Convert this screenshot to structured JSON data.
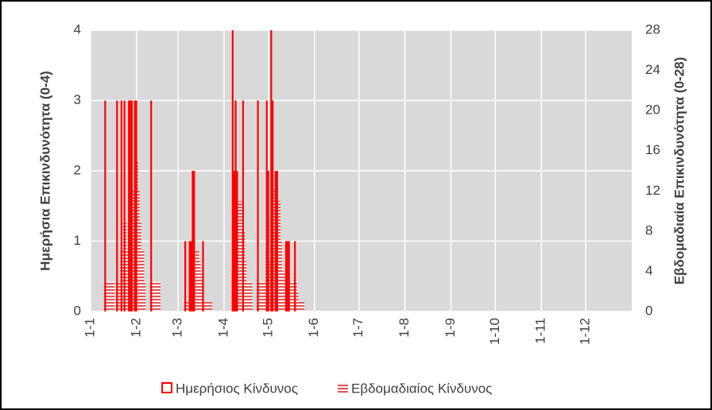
{
  "chart_data": {
    "type": "bar",
    "y_label": "Ημερήσια Επικινδυνότητα (0-4)",
    "y2_label": "Εβδομαδιαία Επικινδυνότητα (0-28)",
    "xlim": [
      0,
      365
    ],
    "xticks": [
      {
        "value": 0,
        "label": "1-1"
      },
      {
        "value": 31,
        "label": "1-2"
      },
      {
        "value": 59,
        "label": "1-3"
      },
      {
        "value": 90,
        "label": "1-4"
      },
      {
        "value": 120,
        "label": "1-5"
      },
      {
        "value": 151,
        "label": "1-6"
      },
      {
        "value": 181,
        "label": "1-7"
      },
      {
        "value": 212,
        "label": "1-8"
      },
      {
        "value": 243,
        "label": "1-9"
      },
      {
        "value": 273,
        "label": "1-10"
      },
      {
        "value": 304,
        "label": "1-11"
      },
      {
        "value": 334,
        "label": "1-12"
      }
    ],
    "ylim": [
      0,
      4
    ],
    "yticks": [
      0,
      1,
      2,
      3,
      4
    ],
    "y2lim": [
      0,
      28
    ],
    "y2ticks": [
      0,
      4,
      8,
      12,
      16,
      20,
      24,
      28
    ],
    "grid": true,
    "legend": "bottom",
    "x": [
      9,
      10,
      11,
      12,
      13,
      14,
      15,
      17,
      18,
      19,
      20,
      21,
      22,
      23,
      24,
      25,
      26,
      27,
      28,
      29,
      30,
      31,
      32,
      33,
      34,
      35,
      36,
      40,
      41,
      42,
      43,
      44,
      45,
      46,
      63,
      64,
      65,
      66,
      67,
      68,
      69,
      70,
      71,
      72,
      73,
      74,
      75,
      76,
      77,
      78,
      79,
      80,
      81,
      95,
      96,
      97,
      98,
      99,
      100,
      101,
      102,
      103,
      104,
      105,
      106,
      107,
      108,
      112,
      113,
      114,
      115,
      116,
      117,
      118,
      119,
      120,
      121,
      122,
      123,
      124,
      125,
      126,
      127,
      128,
      129,
      130,
      131,
      132,
      133,
      134,
      135,
      136,
      137,
      138,
      139,
      140,
      141,
      142,
      143
    ],
    "series": [
      {
        "name": "Εβδομαδιαίος Κίνδυνος",
        "color": "#e05a5a",
        "axis": "y2",
        "values": [
          3,
          3,
          3,
          3,
          3,
          3,
          3,
          3,
          3,
          3,
          6,
          6,
          9,
          9,
          6,
          9,
          12,
          12,
          12,
          12,
          15,
          15,
          12,
          9,
          6,
          6,
          3,
          3,
          3,
          3,
          3,
          3,
          3,
          3,
          1,
          1,
          1,
          2,
          3,
          5,
          7,
          6,
          6,
          6,
          5,
          4,
          3,
          1,
          1,
          1,
          1,
          1,
          1,
          4,
          6,
          9,
          11,
          11,
          11,
          11,
          10,
          8,
          5,
          3,
          3,
          3,
          3,
          3,
          3,
          3,
          3,
          3,
          3,
          6,
          8,
          5,
          9,
          12,
          12,
          14,
          13,
          11,
          11,
          7,
          4,
          4,
          3,
          2,
          3,
          3,
          3,
          3,
          4,
          3,
          2,
          1,
          1,
          1,
          1
        ]
      },
      {
        "name": "Ημερήσιος Κίνδυνος",
        "color": "#ff0000",
        "values": [
          3,
          0,
          0,
          0,
          0,
          0,
          0,
          3,
          0,
          0,
          3,
          0,
          3,
          0,
          0,
          3,
          3,
          3,
          0,
          3,
          3,
          0,
          0,
          0,
          0,
          0,
          0,
          3,
          0,
          0,
          0,
          0,
          0,
          0,
          1,
          0,
          0,
          1,
          1,
          2,
          2,
          0,
          0,
          0,
          0,
          0,
          1,
          0,
          0,
          0,
          0,
          0,
          0,
          4,
          2,
          3,
          2,
          0,
          0,
          0,
          3,
          0,
          0,
          0,
          0,
          0,
          0,
          3,
          0,
          0,
          0,
          0,
          0,
          3,
          2,
          0,
          4,
          3,
          0,
          2,
          2,
          0,
          0,
          0,
          0,
          0,
          1,
          1,
          1,
          0,
          0,
          0,
          1,
          0,
          0,
          0,
          0,
          0,
          0
        ]
      }
    ]
  }
}
